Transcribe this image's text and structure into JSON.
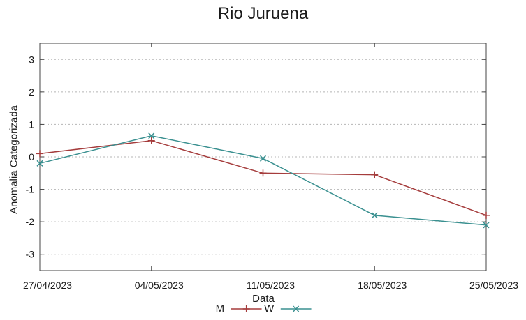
{
  "chart_data": {
    "type": "line",
    "title": "Rio Juruena",
    "xlabel": "Data",
    "ylabel": "Anomalia Categorizada",
    "categories": [
      "27/04/2023",
      "04/05/2023",
      "11/05/2023",
      "18/05/2023",
      "25/05/2023"
    ],
    "series": [
      {
        "name": "M",
        "marker": "plus",
        "color": "#a53c3c",
        "values": [
          0.1,
          0.5,
          -0.5,
          -0.55,
          -1.8
        ]
      },
      {
        "name": "W",
        "marker": "cross",
        "color": "#3a9090",
        "values": [
          -0.2,
          0.65,
          -0.05,
          -1.8,
          -2.1
        ]
      }
    ],
    "yticks": [
      3,
      2,
      1,
      0,
      -1,
      -2,
      -3
    ],
    "ylim": [
      -3.5,
      3.5
    ],
    "grid": "horizontal-dotted",
    "gridline_color": "#b5b5b5",
    "axis_color": "#444444",
    "legend_position": "bottom-center"
  }
}
